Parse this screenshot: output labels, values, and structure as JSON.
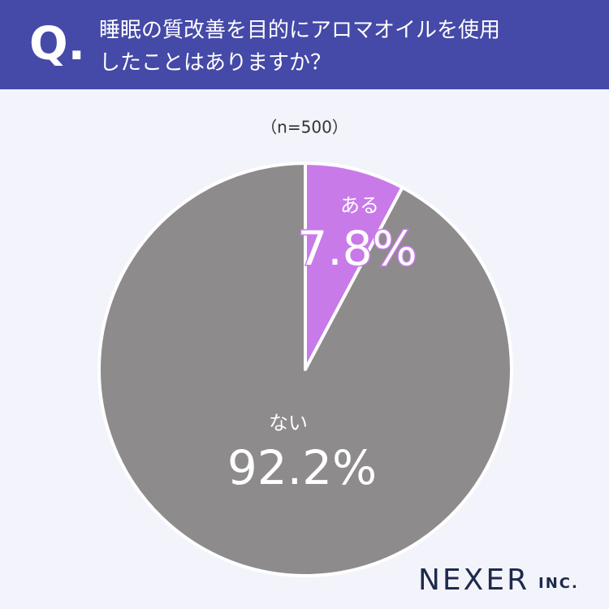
{
  "header": {
    "q": "Q."
  },
  "chart_data": {
    "type": "pie",
    "title": [
      "睡眠の質改善を目的にアロマオイルを使用",
      "したことはありますか？"
    ],
    "subtitle": "（n=500）",
    "categories": [
      "ある",
      "ない"
    ],
    "values": [
      7.8,
      92.2
    ],
    "value_labels": [
      "7.8%",
      "92.2%"
    ],
    "colors": [
      "#c97ae9",
      "#8d8b8c"
    ]
  },
  "brand": {
    "name": "NEXER",
    "suffix": "INC."
  }
}
